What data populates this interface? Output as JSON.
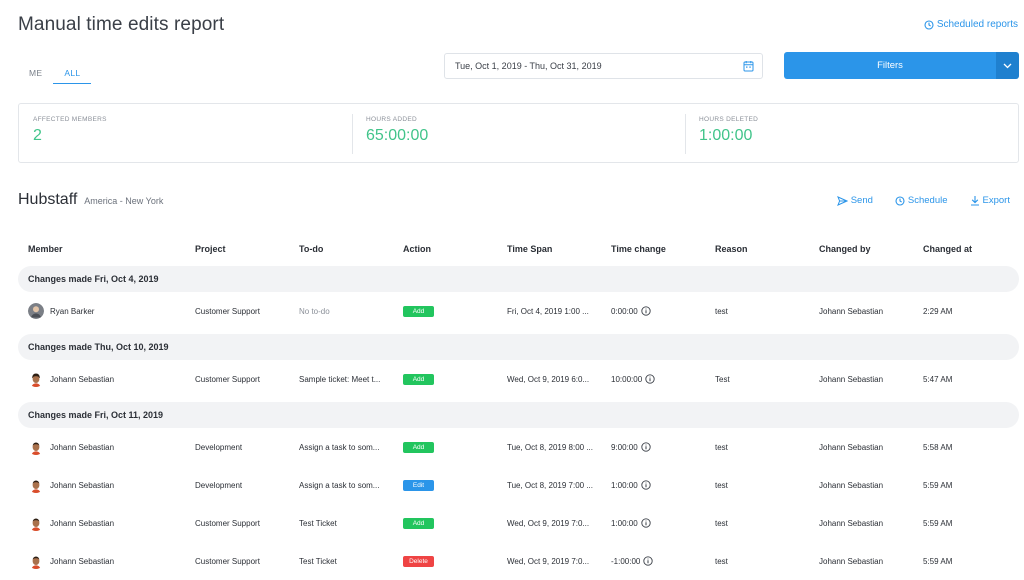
{
  "page": {
    "title": "Manual time edits report",
    "scheduled_reports": "Scheduled reports"
  },
  "tabs": [
    {
      "label": "ME"
    },
    {
      "label": "ALL"
    }
  ],
  "date_range": "Tue, Oct 1, 2019 - Thu, Oct 31, 2019",
  "filters_label": "Filters",
  "summary": {
    "affected_label": "AFFECTED MEMBERS",
    "affected_value": "2",
    "added_label": "HOURS ADDED",
    "added_value": "65:00:00",
    "deleted_label": "HOURS DELETED",
    "deleted_value": "1:00:00"
  },
  "org": {
    "name": "Hubstaff",
    "timezone": "America - New York"
  },
  "actions": {
    "send": "Send",
    "schedule": "Schedule",
    "export": "Export"
  },
  "columns": [
    "Member",
    "Project",
    "To-do",
    "Action",
    "Time Span",
    "Time change",
    "Reason",
    "Changed by",
    "Changed at"
  ],
  "groups": [
    {
      "title": "Changes made Fri, Oct 4, 2019"
    },
    {
      "title": "Changes made Thu, Oct 10, 2019"
    },
    {
      "title": "Changes made Fri, Oct 11, 2019"
    }
  ],
  "rows": [
    {
      "member": "Ryan Barker",
      "project": "Customer Support",
      "todo": "No to-do",
      "action": "Add",
      "span": "Fri, Oct 4, 2019 1:00 ...",
      "change": "0:00:00",
      "reason": "test",
      "by": "Johann Sebastian",
      "at": "2:29 AM"
    },
    {
      "member": "Johann Sebastian",
      "project": "Customer Support",
      "todo": "Sample ticket: Meet t...",
      "action": "Add",
      "span": "Wed, Oct 9, 2019 6:0...",
      "change": "10:00:00",
      "reason": "Test",
      "by": "Johann Sebastian",
      "at": "5:47 AM"
    },
    {
      "member": "Johann Sebastian",
      "project": "Development",
      "todo": "Assign a task to som...",
      "action": "Add",
      "span": "Tue, Oct 8, 2019 8:00 ...",
      "change": "9:00:00",
      "reason": "test",
      "by": "Johann Sebastian",
      "at": "5:58 AM"
    },
    {
      "member": "Johann Sebastian",
      "project": "Development",
      "todo": "Assign a task to som...",
      "action": "Edit",
      "span": "Tue, Oct 8, 2019 7:00 ...",
      "change": "1:00:00",
      "reason": "test",
      "by": "Johann Sebastian",
      "at": "5:59 AM"
    },
    {
      "member": "Johann Sebastian",
      "project": "Customer Support",
      "todo": "Test Ticket",
      "action": "Add",
      "span": "Wed, Oct 9, 2019 7:0...",
      "change": "1:00:00",
      "reason": "test",
      "by": "Johann Sebastian",
      "at": "5:59 AM"
    },
    {
      "member": "Johann Sebastian",
      "project": "Customer Support",
      "todo": "Test Ticket",
      "action": "Delete",
      "span": "Wed, Oct 9, 2019 7:0...",
      "change": "-1:00:00",
      "reason": "test",
      "by": "Johann Sebastian",
      "at": "5:59 AM"
    }
  ],
  "colors": {
    "accent": "#2b95e9",
    "positive": "#41c48a",
    "add": "#22c55e",
    "edit": "#2b95e9",
    "delete": "#ef4444"
  }
}
